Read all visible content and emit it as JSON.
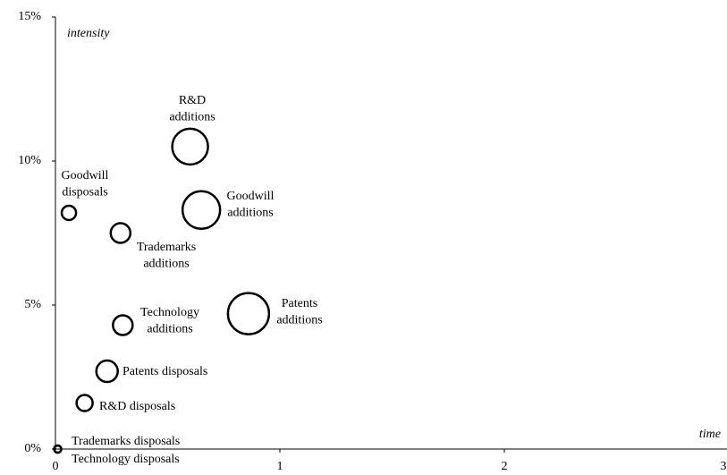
{
  "chart_data": {
    "type": "bubble",
    "xlabel": "time",
    "ylabel": "intensity",
    "x": [
      0.6,
      0.65,
      0.06,
      0.29,
      0.86,
      0.3,
      0.23,
      0.13,
      0.01,
      0.01
    ],
    "y": [
      10.5,
      8.3,
      8.2,
      7.5,
      4.7,
      4.3,
      2.7,
      1.6,
      0,
      0
    ],
    "sizes": [
      20,
      21,
      8,
      11,
      23,
      11,
      12,
      9,
      4,
      4
    ],
    "labels": [
      [
        "R&D",
        "additions"
      ],
      [
        "Goodwill",
        "additions"
      ],
      [
        "Goodwill",
        "disposals"
      ],
      [
        "Trademarks",
        "additions"
      ],
      [
        "Patents",
        "additions"
      ],
      [
        "Technology",
        "additions"
      ],
      [
        "Patents disposals"
      ],
      [
        "R&D disposals"
      ],
      [
        "Trademarks disposals"
      ],
      [
        "Technology disposals"
      ]
    ],
    "color": "#000000",
    "xlim": [
      0,
      3
    ],
    "xticks": [
      0,
      1,
      2,
      3
    ],
    "ylim": [
      0,
      15
    ],
    "yticks": [
      {
        "value": 0,
        "label": "0%"
      },
      {
        "value": 5,
        "label": "5%"
      },
      {
        "value": 10,
        "label": "10%"
      },
      {
        "value": 15,
        "label": "15%"
      }
    ]
  }
}
